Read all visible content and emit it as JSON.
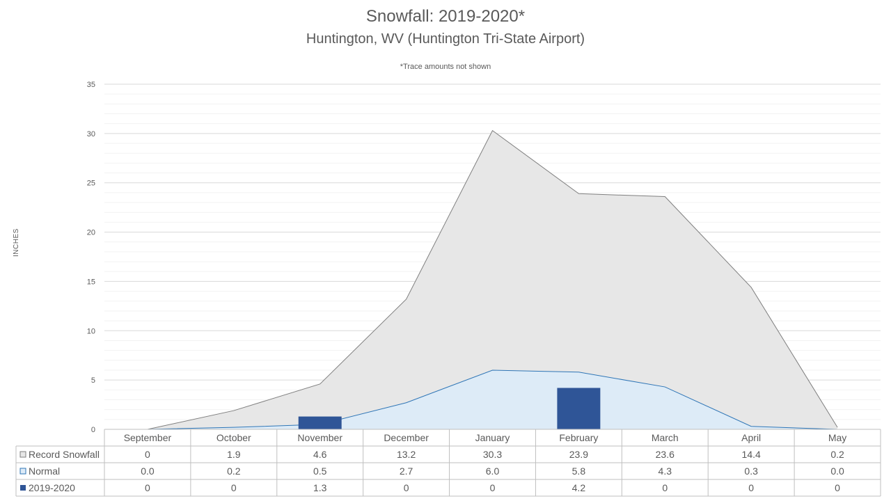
{
  "chart_data": {
    "type": "area",
    "title": "Snowfall: 2019-2020*",
    "subtitle": "Huntington, WV (Huntington Tri-State Airport)",
    "note": "*Trace amounts not shown",
    "ylabel": "INCHES",
    "ylim": [
      0,
      35
    ],
    "yticks": [
      "0",
      "5",
      "10",
      "15",
      "20",
      "25",
      "30",
      "35"
    ],
    "categories": [
      "September",
      "October",
      "November",
      "December",
      "January",
      "February",
      "March",
      "April",
      "May"
    ],
    "grid": true,
    "legend_placement": "data table",
    "series": [
      {
        "name": "Record Snowfall",
        "kind": "area",
        "color": "#e7e7e7",
        "line_color": "#7f7f7f",
        "values": [
          0,
          1.9,
          4.6,
          13.2,
          30.3,
          23.9,
          23.6,
          14.4,
          0.2
        ],
        "labels": [
          "0",
          "1.9",
          "4.6",
          "13.2",
          "30.3",
          "23.9",
          "23.6",
          "14.4",
          "0.2"
        ]
      },
      {
        "name": "Normal",
        "kind": "area",
        "color": "#ddebf7",
        "line_color": "#2e75b6",
        "values": [
          0.0,
          0.2,
          0.5,
          2.7,
          6.0,
          5.8,
          4.3,
          0.3,
          0.0
        ],
        "labels": [
          "0.0",
          "0.2",
          "0.5",
          "2.7",
          "6.0",
          "5.8",
          "4.3",
          "0.3",
          "0.0"
        ]
      },
      {
        "name": "2019-2020",
        "kind": "bar",
        "color": "#2f5597",
        "values": [
          0,
          0,
          1.3,
          0,
          0,
          4.2,
          0,
          0,
          0
        ],
        "labels": [
          "0",
          "0",
          "1.3",
          "0",
          "0",
          "4.2",
          "0",
          "0",
          "0"
        ]
      }
    ]
  }
}
